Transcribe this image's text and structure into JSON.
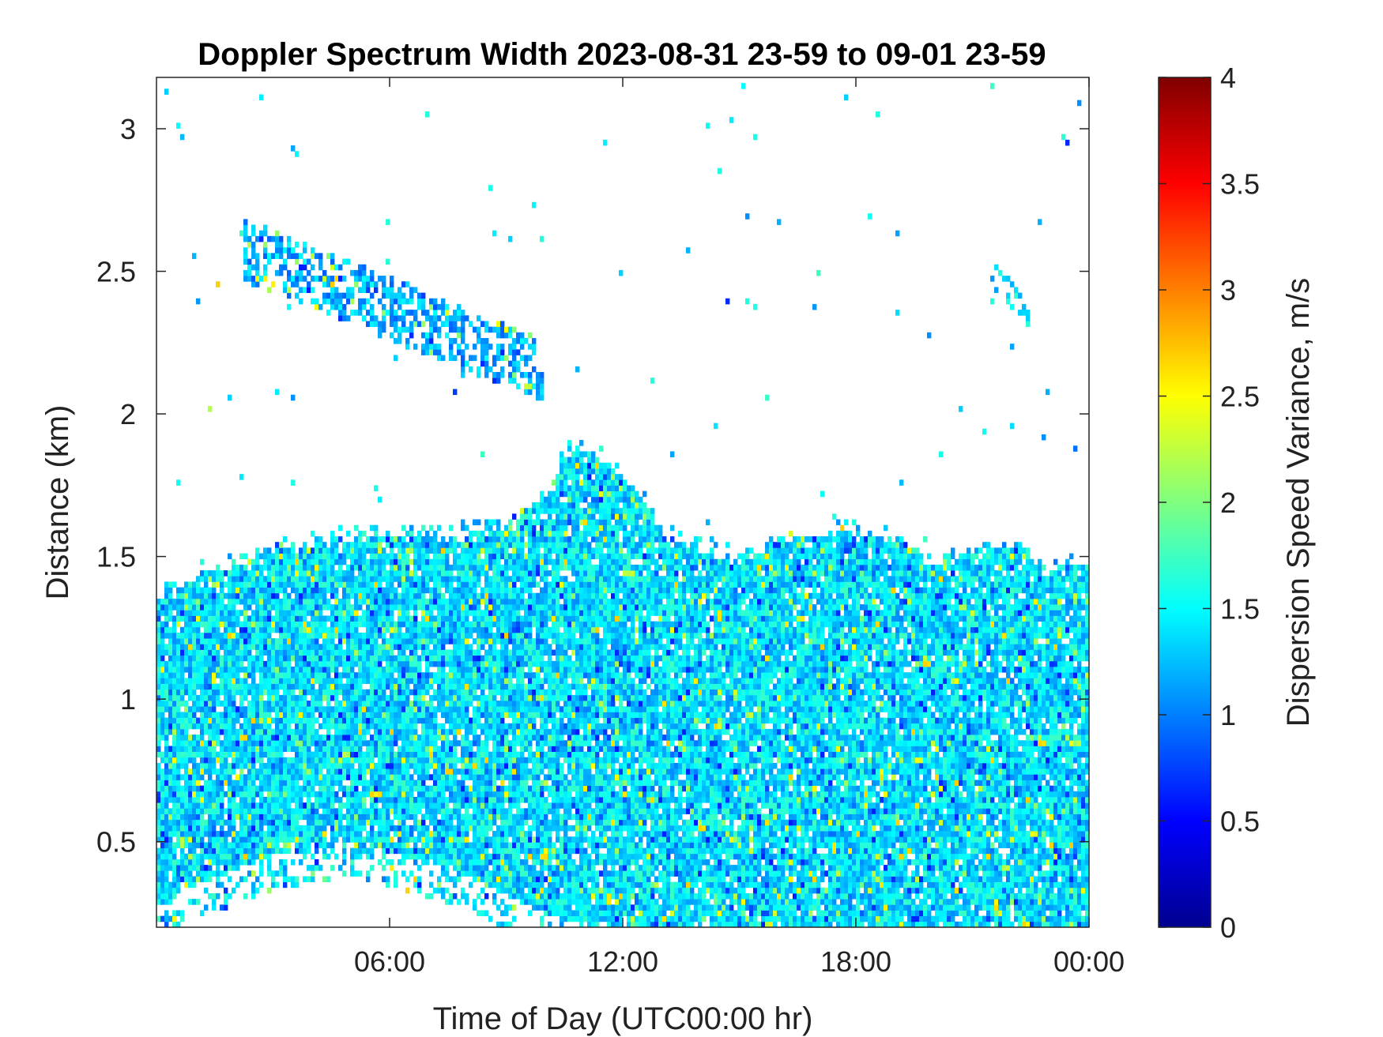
{
  "chart_data": {
    "type": "heatmap",
    "title": "Doppler Spectrum Width 2023-08-31 23-59 to 09-01 23-59",
    "xlabel": "Time of Day (UTC00:00 hr)",
    "ylabel": "Distance (km)",
    "colorbar_label": "Dispersion Speed Variance, m/s",
    "xlim_hours": [
      0,
      24
    ],
    "ylim": [
      0.2,
      3.18
    ],
    "clim": [
      0,
      4
    ],
    "colormap": "jet",
    "x_ticks": [
      {
        "value": 6,
        "label": "06:00"
      },
      {
        "value": 12,
        "label": "12:00"
      },
      {
        "value": 18,
        "label": "18:00"
      },
      {
        "value": 24,
        "label": "00:00"
      }
    ],
    "y_ticks": [
      {
        "value": 0.5,
        "label": "0.5"
      },
      {
        "value": 1,
        "label": "1"
      },
      {
        "value": 1.5,
        "label": "1.5"
      },
      {
        "value": 2,
        "label": "2"
      },
      {
        "value": 2.5,
        "label": "2.5"
      },
      {
        "value": 3,
        "label": "3"
      }
    ],
    "colorbar_ticks": [
      {
        "value": 0,
        "label": "0"
      },
      {
        "value": 0.5,
        "label": "0.5"
      },
      {
        "value": 1,
        "label": "1"
      },
      {
        "value": 1.5,
        "label": "1.5"
      },
      {
        "value": 2,
        "label": "2"
      },
      {
        "value": 2.5,
        "label": "2.5"
      },
      {
        "value": 3,
        "label": "3"
      },
      {
        "value": 3.5,
        "label": "3.5"
      },
      {
        "value": 4,
        "label": "4"
      }
    ],
    "layers": {
      "boundary_layer_top_km": [
        [
          0.0,
          1.35
        ],
        [
          1.0,
          1.42
        ],
        [
          2.0,
          1.47
        ],
        [
          3.0,
          1.52
        ],
        [
          4.0,
          1.54
        ],
        [
          5.0,
          1.56
        ],
        [
          6.0,
          1.58
        ],
        [
          7.0,
          1.58
        ],
        [
          8.0,
          1.58
        ],
        [
          9.0,
          1.6
        ],
        [
          10.0,
          1.7
        ],
        [
          10.5,
          1.85
        ],
        [
          11.0,
          1.88
        ],
        [
          11.5,
          1.84
        ],
        [
          12.0,
          1.78
        ],
        [
          12.5,
          1.7
        ],
        [
          13.0,
          1.58
        ],
        [
          14.0,
          1.52
        ],
        [
          15.0,
          1.47
        ],
        [
          16.0,
          1.55
        ],
        [
          17.0,
          1.57
        ],
        [
          18.0,
          1.58
        ],
        [
          19.0,
          1.56
        ],
        [
          20.0,
          1.47
        ],
        [
          21.0,
          1.52
        ],
        [
          22.0,
          1.54
        ],
        [
          23.0,
          1.45
        ],
        [
          24.0,
          1.48
        ]
      ],
      "boundary_layer_bottom_km": [
        [
          0.0,
          0.3
        ],
        [
          3.0,
          0.45
        ],
        [
          5.0,
          0.5
        ],
        [
          8.0,
          0.38
        ],
        [
          10.0,
          0.25
        ],
        [
          12.0,
          0.2
        ],
        [
          24.0,
          0.2
        ]
      ],
      "elevated_layer": {
        "time_start_hr": 2.2,
        "time_end_hr": 10.0,
        "height_start_km": 2.58,
        "height_end_km": 2.15,
        "thickness_km": 0.22,
        "dominant_value_ms": 1.2
      },
      "minor_patch": {
        "time_start_hr": 21.5,
        "time_end_hr": 22.5,
        "height_start_km": 2.5,
        "height_end_km": 2.35
      },
      "dominant_value_ms": 1.4,
      "value_range_ms": [
        0.6,
        2.6
      ]
    }
  }
}
